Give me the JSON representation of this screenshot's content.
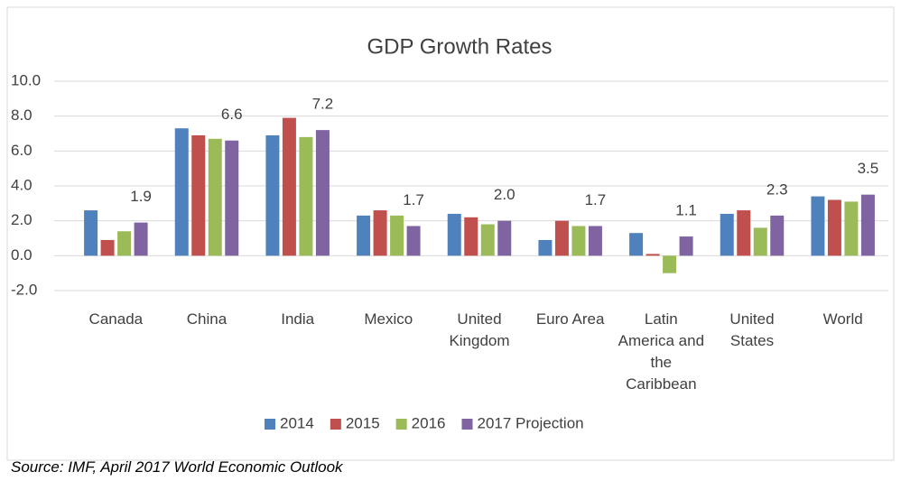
{
  "chart_data": {
    "type": "bar",
    "title": "GDP Growth Rates",
    "categories": [
      "Canada",
      "China",
      "India",
      "Mexico",
      "United Kingdom",
      "Euro Area",
      "Latin America and the Caribbean",
      "United States",
      "World"
    ],
    "series": [
      {
        "name": "2014",
        "color": "#4f81bd",
        "values": [
          2.6,
          7.3,
          6.9,
          2.3,
          2.4,
          0.9,
          1.3,
          2.4,
          3.4
        ]
      },
      {
        "name": "2015",
        "color": "#c0504d",
        "values": [
          0.9,
          6.9,
          7.9,
          2.6,
          2.2,
          2.0,
          0.1,
          2.6,
          3.2
        ]
      },
      {
        "name": "2016",
        "color": "#9bbb59",
        "values": [
          1.4,
          6.7,
          6.8,
          2.3,
          1.8,
          1.7,
          -1.0,
          1.6,
          3.1
        ]
      },
      {
        "name": "2017 Projection",
        "color": "#8064a2",
        "values": [
          1.9,
          6.6,
          7.2,
          1.7,
          2.0,
          1.7,
          1.1,
          2.3,
          3.5
        ],
        "value_labels": [
          "1.9",
          "6.6",
          "7.2",
          "1.7",
          "2.0",
          "1.7",
          "1.1",
          "2.3",
          "3.5"
        ]
      }
    ],
    "ylim": [
      -2,
      10
    ],
    "yticks": [
      {
        "value": -2,
        "label": "-2.0"
      },
      {
        "value": 0,
        "label": "0.0"
      },
      {
        "value": 2,
        "label": "2.0"
      },
      {
        "value": 4,
        "label": "4.0"
      },
      {
        "value": 6,
        "label": "6.0"
      },
      {
        "value": 8,
        "label": "8.0"
      },
      {
        "value": 10,
        "label": "10.0"
      }
    ],
    "grid": true,
    "legend": "bottom",
    "source": "Source: IMF, April 2017 World Economic Outlook"
  }
}
